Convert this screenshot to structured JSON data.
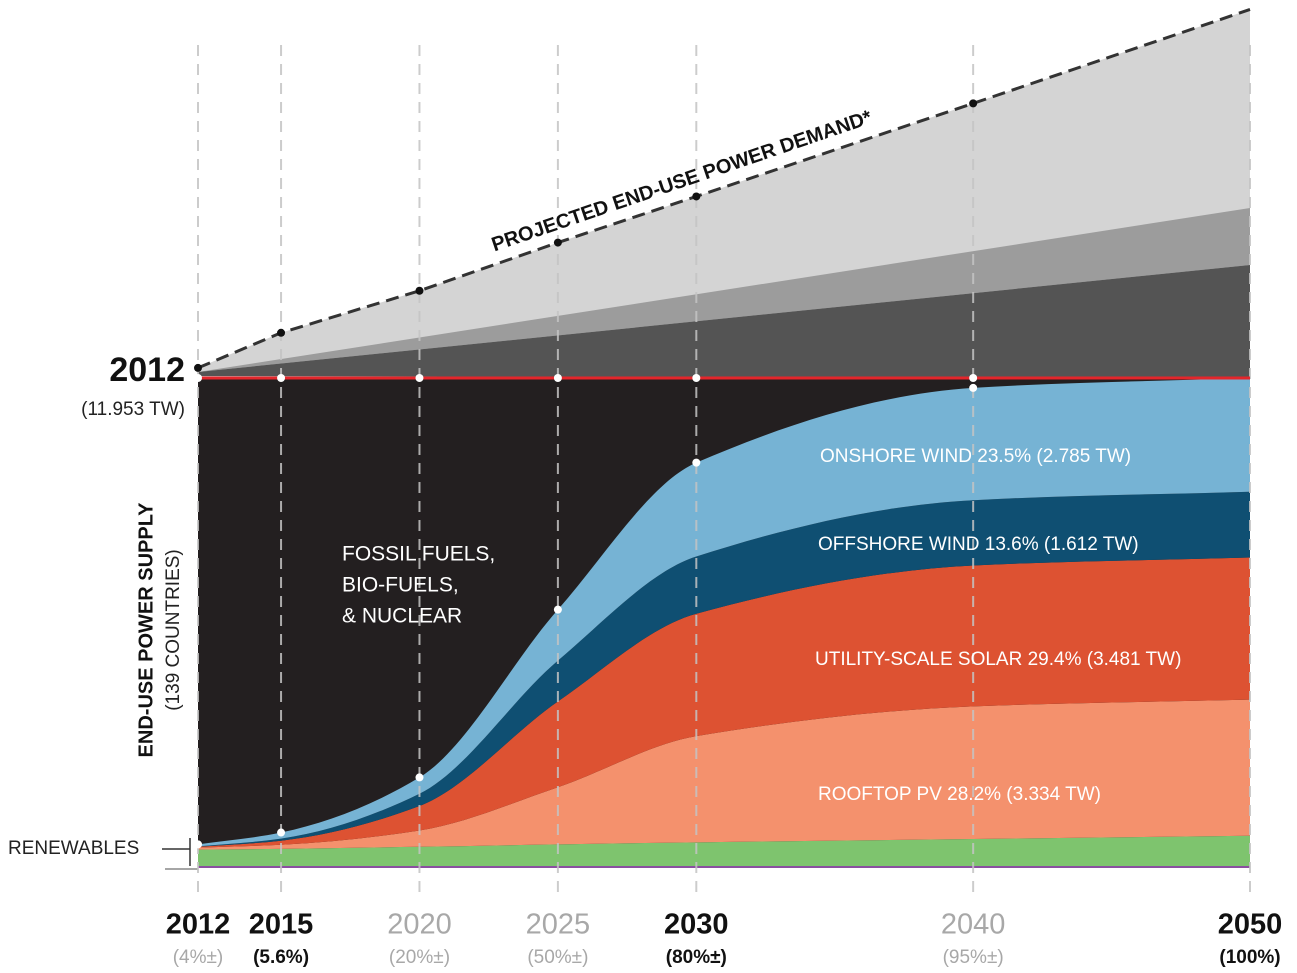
{
  "chart_data": {
    "type": "area",
    "x": [
      2012,
      2015,
      2020,
      2025,
      2030,
      2040,
      2050
    ],
    "xlim": [
      2012,
      2050
    ],
    "x_highlight": [
      true,
      true,
      false,
      false,
      true,
      false,
      true
    ],
    "x_sublabels": [
      "(4%±)",
      "(5.6%)",
      "(20%±)",
      "(50%±)",
      "(80%±)",
      "(95%±)",
      "(100%)"
    ],
    "x_sublabel_highlight": [
      false,
      true,
      false,
      false,
      true,
      false,
      true
    ],
    "supply": 11.953,
    "supply_label": "(11.953 TW)",
    "demand": [
      12.2,
      13.06,
      14.09,
      15.27,
      16.4,
      18.68,
      20.98
    ],
    "demand_label": "PROJECTED  END-USE POWER DEMAND*",
    "ylabel": [
      "END-USE POWER SUPPLY",
      "(139 COUNTRIES)"
    ],
    "fossil_label": [
      "FOSSIL FUELS,",
      "BIO-FUELS,",
      "& NUCLEAR"
    ],
    "renewables_label": "RENEWABLES",
    "series": [
      {
        "color": "#7ec46e",
        "values": [
          0.4,
          0.42,
          0.47,
          0.53,
          0.58,
          0.66,
          0.74
        ]
      },
      {
        "name": "ROOFTOP PV 28.2% (3.334 TW)",
        "color": "#f4916d",
        "values": [
          0.05,
          0.1,
          0.4,
          1.4,
          2.6,
          3.25,
          3.334
        ]
      },
      {
        "name": "UTILITY-SCALE SOLAR 29.4% (3.481 TW)",
        "color": "#dd5232",
        "values": [
          0.02,
          0.1,
          0.6,
          2.1,
          3.0,
          3.45,
          3.481
        ]
      },
      {
        "name": "OFFSHORE WIND 13.6% (1.612 TW)",
        "color": "#0f4f72",
        "values": [
          0.01,
          0.05,
          0.3,
          1.0,
          1.4,
          1.6,
          1.612
        ]
      },
      {
        "name": "ONSHORE WIND 23.5% (2.785 TW)",
        "color": "#76b3d4",
        "values": [
          0.05,
          0.15,
          0.4,
          1.25,
          2.3,
          2.75,
          2.785
        ]
      }
    ]
  }
}
